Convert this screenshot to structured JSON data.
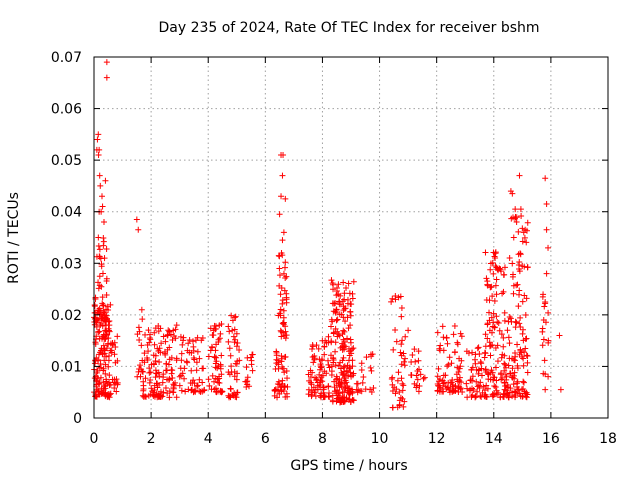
{
  "chart_data": {
    "type": "scatter",
    "title": "Day 235 of 2024, Rate Of TEC Index for receiver bshm",
    "xlabel": "GPS time / hours",
    "ylabel": "ROTI / TECUs",
    "xlim": [
      0,
      18
    ],
    "ylim": [
      0,
      0.07
    ],
    "xticks": [
      "0",
      "2",
      "4",
      "6",
      "8",
      "10",
      "12",
      "14",
      "16",
      "18"
    ],
    "yticks": [
      "0",
      "0.01",
      "0.02",
      "0.03",
      "0.04",
      "0.05",
      "0.06",
      "0.07"
    ],
    "grid": true,
    "marker": "plus",
    "color": "#ff0000",
    "clusters": [
      {
        "x": [
          0.0,
          0.6
        ],
        "y": [
          0.004,
          0.022
        ],
        "n": 150
      },
      {
        "x": [
          0.05,
          0.5
        ],
        "y": [
          0.018,
          0.035
        ],
        "n": 50
      },
      {
        "x": [
          0.6,
          0.85
        ],
        "y": [
          0.005,
          0.016
        ],
        "n": 20
      },
      {
        "x": [
          1.5,
          1.7
        ],
        "y": [
          0.008,
          0.022
        ],
        "n": 15
      },
      {
        "x": [
          1.7,
          2.9
        ],
        "y": [
          0.004,
          0.018
        ],
        "n": 130
      },
      {
        "x": [
          3.0,
          3.9
        ],
        "y": [
          0.005,
          0.016
        ],
        "n": 60
      },
      {
        "x": [
          4.0,
          4.5
        ],
        "y": [
          0.005,
          0.019
        ],
        "n": 55
      },
      {
        "x": [
          4.7,
          5.1
        ],
        "y": [
          0.004,
          0.021
        ],
        "n": 45
      },
      {
        "x": [
          5.3,
          5.6
        ],
        "y": [
          0.006,
          0.013
        ],
        "n": 15
      },
      {
        "x": [
          6.3,
          6.8
        ],
        "y": [
          0.004,
          0.013
        ],
        "n": 45
      },
      {
        "x": [
          6.45,
          6.75
        ],
        "y": [
          0.015,
          0.032
        ],
        "n": 40
      },
      {
        "x": [
          7.5,
          8.3
        ],
        "y": [
          0.004,
          0.016
        ],
        "n": 80
      },
      {
        "x": [
          8.3,
          9.1
        ],
        "y": [
          0.003,
          0.027
        ],
        "n": 200
      },
      {
        "x": [
          9.2,
          9.8
        ],
        "y": [
          0.005,
          0.013
        ],
        "n": 20
      },
      {
        "x": [
          10.4,
          10.9
        ],
        "y": [
          0.002,
          0.024
        ],
        "n": 45
      },
      {
        "x": [
          11.1,
          11.6
        ],
        "y": [
          0.005,
          0.014
        ],
        "n": 20
      },
      {
        "x": [
          12.0,
          12.9
        ],
        "y": [
          0.005,
          0.018
        ],
        "n": 80
      },
      {
        "x": [
          13.0,
          13.7
        ],
        "y": [
          0.004,
          0.014
        ],
        "n": 50
      },
      {
        "x": [
          13.7,
          14.5
        ],
        "y": [
          0.004,
          0.033
        ],
        "n": 130
      },
      {
        "x": [
          14.5,
          15.2
        ],
        "y": [
          0.004,
          0.04
        ],
        "n": 120
      },
      {
        "x": [
          15.7,
          15.95
        ],
        "y": [
          0.008,
          0.025
        ],
        "n": 15
      }
    ],
    "points": [
      [
        0.1,
        0.052
      ],
      [
        0.15,
        0.055
      ],
      [
        0.12,
        0.054
      ],
      [
        0.18,
        0.052
      ],
      [
        0.16,
        0.051
      ],
      [
        0.2,
        0.047
      ],
      [
        0.22,
        0.045
      ],
      [
        0.28,
        0.043
      ],
      [
        0.3,
        0.041
      ],
      [
        0.18,
        0.04
      ],
      [
        0.25,
        0.04
      ],
      [
        0.35,
        0.038
      ],
      [
        0.4,
        0.046
      ],
      [
        0.45,
        0.069
      ],
      [
        0.45,
        0.066
      ],
      [
        1.5,
        0.0385
      ],
      [
        1.55,
        0.0365
      ],
      [
        6.5,
        0.0395
      ],
      [
        6.55,
        0.043
      ],
      [
        6.6,
        0.047
      ],
      [
        6.55,
        0.051
      ],
      [
        6.62,
        0.051
      ],
      [
        6.7,
        0.0425
      ],
      [
        6.6,
        0.0345
      ],
      [
        6.65,
        0.036
      ],
      [
        9.2,
        0.0055
      ],
      [
        11.0,
        0.017
      ],
      [
        14.2,
        0.029
      ],
      [
        14.6,
        0.044
      ],
      [
        14.65,
        0.0435
      ],
      [
        14.75,
        0.0405
      ],
      [
        14.8,
        0.038
      ],
      [
        14.9,
        0.047
      ],
      [
        14.95,
        0.0405
      ],
      [
        15.1,
        0.0365
      ],
      [
        15.05,
        0.036
      ],
      [
        14.7,
        0.035
      ],
      [
        15.8,
        0.0465
      ],
      [
        15.85,
        0.0415
      ],
      [
        15.85,
        0.0365
      ],
      [
        15.9,
        0.033
      ],
      [
        15.85,
        0.028
      ],
      [
        15.8,
        0.0225
      ],
      [
        15.75,
        0.019
      ],
      [
        15.8,
        0.0055
      ],
      [
        15.8,
        0.0085
      ],
      [
        16.3,
        0.016
      ],
      [
        16.35,
        0.0055
      ]
    ]
  }
}
